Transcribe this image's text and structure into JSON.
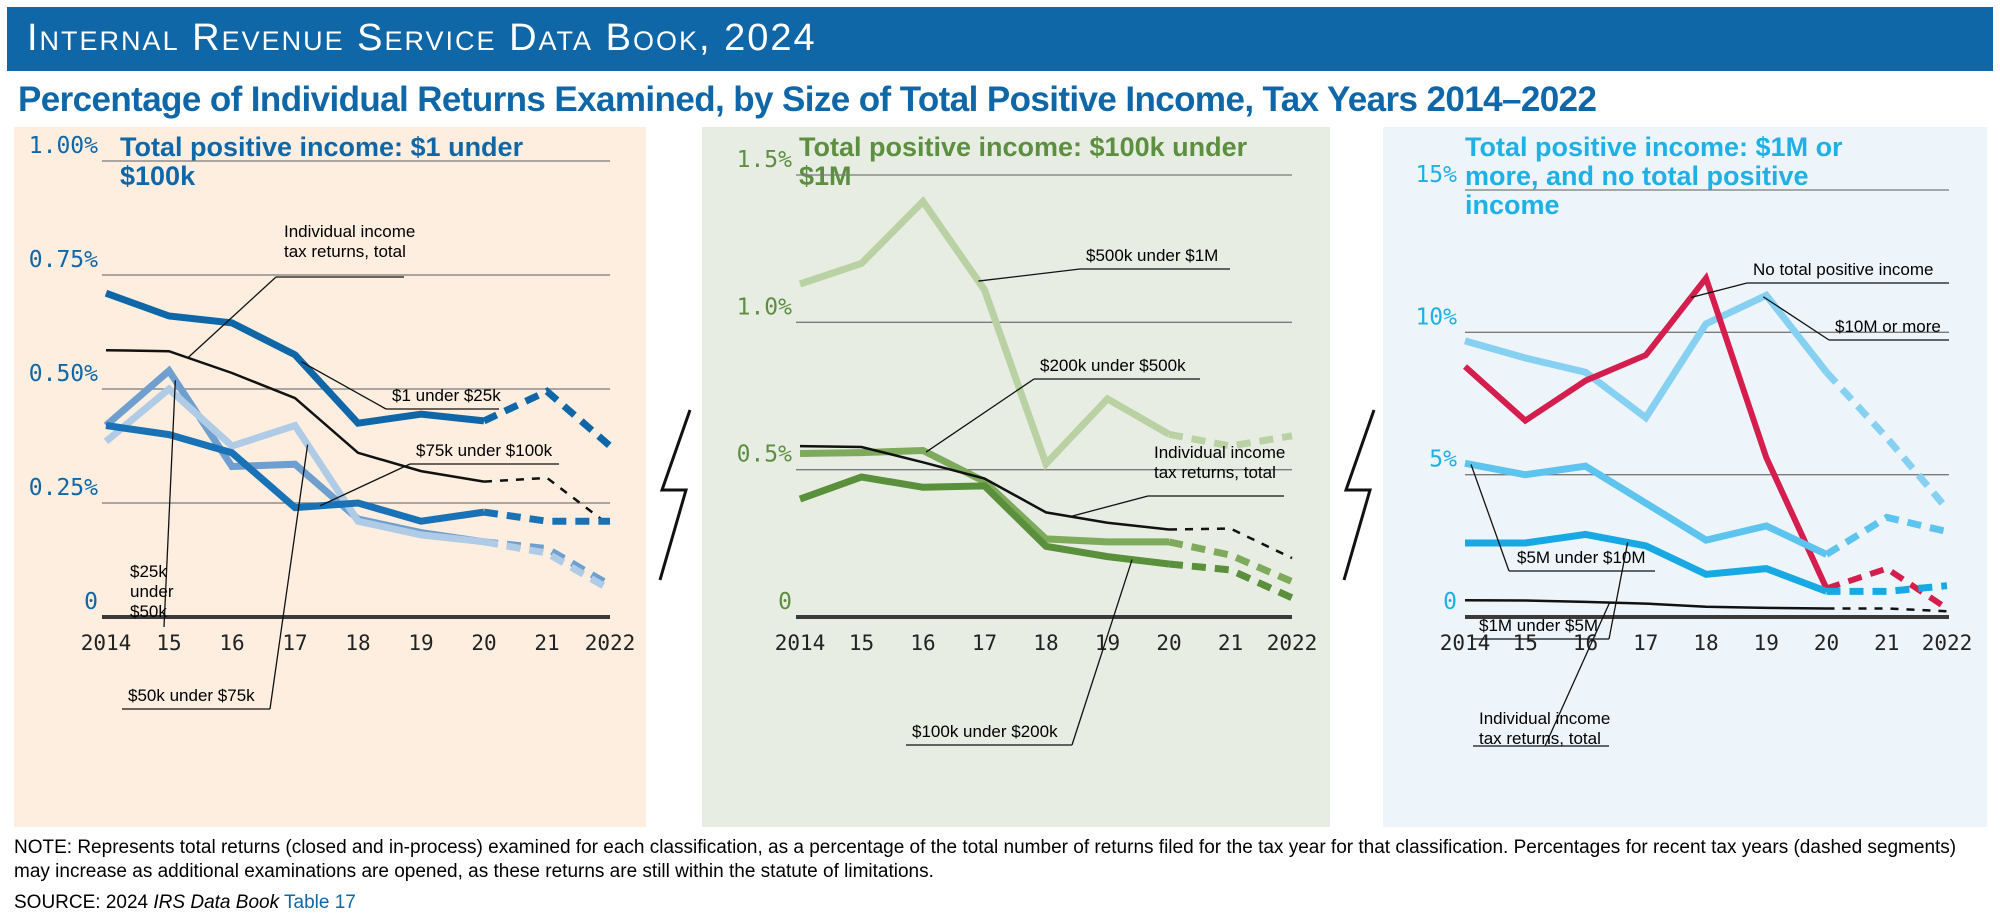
{
  "banner": {
    "title": "Internal Revenue Service Data Book, 2024"
  },
  "title": "Percentage of Individual Returns Examined, by Size of Total Positive Income, Tax Years 2014–2022",
  "note": "NOTE:  Represents total returns (closed and in-process) examined for each classification, as a percentage of the total number of returns filed for the tax year for that classification. Percentages for recent tax years (dashed segments) may increase as additional examinations are opened, as these returns are still within the statute of limitations.",
  "source": {
    "prefix": "SOURCE:  2024 ",
    "italic": "IRS Data Book",
    "link": "Table 17"
  },
  "chart_data": [
    {
      "type": "line",
      "panel_title": "Total positive income: $1 under $100k",
      "title_color": "#0f67a8",
      "x": [
        2014,
        2015,
        2016,
        2017,
        2018,
        2019,
        2020,
        2021,
        2022
      ],
      "x_tick_labels": [
        "2014",
        "15",
        "16",
        "17",
        "18",
        "19",
        "20",
        "21",
        "2022"
      ],
      "y_ticks": [
        0,
        0.25,
        0.5,
        0.75,
        1.0
      ],
      "y_tick_labels": [
        "0",
        "0.25%",
        "0.50%",
        "0.75%",
        "1.00%"
      ],
      "ylim": [
        0,
        1.0
      ],
      "dashed_from": 2020,
      "series": [
        {
          "name": "$1 under $25k",
          "color": "#0f67a8",
          "width": 7,
          "values": [
            0.71,
            0.66,
            0.645,
            0.575,
            0.425,
            0.445,
            0.43,
            0.495,
            0.375
          ]
        },
        {
          "name": "Individual income tax returns, total",
          "color": "#111111",
          "width": 2.5,
          "values": [
            0.585,
            0.583,
            0.535,
            0.48,
            0.36,
            0.32,
            0.297,
            0.305,
            0.2
          ]
        },
        {
          "name": "$25k under $50k",
          "color": "#6f9fcf",
          "width": 7,
          "values": [
            0.42,
            0.54,
            0.33,
            0.335,
            0.215,
            0.185,
            0.165,
            0.15,
            0.07
          ]
        },
        {
          "name": "$75k under $100k",
          "color": "#b0cbe6",
          "width": 7,
          "values": [
            0.385,
            0.5,
            0.375,
            0.42,
            0.21,
            0.18,
            0.165,
            0.14,
            0.06
          ]
        },
        {
          "name": "$50k under $75k",
          "color": "#1a72b6",
          "width": 7,
          "values": [
            0.42,
            0.4,
            0.36,
            0.24,
            0.25,
            0.21,
            0.23,
            0.21,
            0.21
          ]
        }
      ],
      "labels": [
        "Individual income tax returns, total",
        "$1 under $25k",
        "$75k under $100k",
        "$25k under $50k",
        "$50k under $75k"
      ]
    },
    {
      "type": "line",
      "panel_title": "Total positive income: $100k under $1M",
      "title_color": "#5c8f3f",
      "x": [
        2014,
        2015,
        2016,
        2017,
        2018,
        2019,
        2020,
        2021,
        2022
      ],
      "x_tick_labels": [
        "2014",
        "15",
        "16",
        "17",
        "18",
        "19",
        "20",
        "21",
        "2022"
      ],
      "y_ticks": [
        0,
        0.5,
        1.0,
        1.5
      ],
      "y_tick_labels": [
        "0",
        "0.5%",
        "1.0%",
        "1.5%"
      ],
      "ylim": [
        0,
        1.5
      ],
      "dashed_from": 2020,
      "series": [
        {
          "name": "$500k under $1M",
          "color": "#b9d1a3",
          "width": 7,
          "values": [
            1.13,
            1.2,
            1.41,
            1.11,
            0.52,
            0.74,
            0.62,
            0.58,
            0.615
          ]
        },
        {
          "name": "$200k under $500k",
          "color": "#7eaa5c",
          "width": 7,
          "values": [
            0.555,
            0.558,
            0.565,
            0.46,
            0.265,
            0.255,
            0.255,
            0.21,
            0.12
          ]
        },
        {
          "name": "Individual income tax returns, total",
          "color": "#111111",
          "width": 2.5,
          "values": [
            0.58,
            0.577,
            0.525,
            0.47,
            0.355,
            0.32,
            0.297,
            0.3,
            0.2
          ]
        },
        {
          "name": "$100k under $200k",
          "color": "#5a8f3c",
          "width": 7,
          "values": [
            0.4,
            0.475,
            0.44,
            0.445,
            0.24,
            0.205,
            0.18,
            0.16,
            0.065
          ]
        }
      ],
      "labels": [
        "$500k under $1M",
        "$200k under $500k",
        "Individual income tax returns, total",
        "$100k under $200k"
      ]
    },
    {
      "type": "line",
      "panel_title": "Total positive income: $1M or more, and no total positive income",
      "title_color": "#1fb0e6",
      "x": [
        2014,
        2015,
        2016,
        2017,
        2018,
        2019,
        2020,
        2021,
        2022
      ],
      "x_tick_labels": [
        "2014",
        "15",
        "16",
        "17",
        "18",
        "19",
        "20",
        "21",
        "2022"
      ],
      "y_ticks": [
        0,
        5,
        10,
        15
      ],
      "y_tick_labels": [
        "0",
        "5%",
        "10%",
        "15%"
      ],
      "ylim": [
        0,
        15
      ],
      "dashed_from": 2020,
      "series": [
        {
          "name": "$10M or more",
          "color": "#86d0f2",
          "width": 7,
          "values": [
            9.7,
            9.1,
            8.6,
            7.0,
            10.3,
            11.3,
            8.6,
            6.3,
            3.8
          ]
        },
        {
          "name": "No total positive income",
          "color": "#d41f4e",
          "width": 6,
          "values": [
            8.8,
            6.9,
            8.3,
            9.2,
            11.9,
            5.6,
            1.0,
            1.7,
            0.3
          ]
        },
        {
          "name": "$5M under $10M",
          "color": "#5cc4ef",
          "width": 7,
          "values": [
            5.4,
            5.0,
            5.3,
            4.0,
            2.7,
            3.2,
            2.2,
            3.5,
            3.0
          ]
        },
        {
          "name": "$1M under $5M",
          "color": "#18a9e4",
          "width": 7,
          "values": [
            2.6,
            2.6,
            2.9,
            2.5,
            1.5,
            1.7,
            0.9,
            0.9,
            1.1
          ]
        },
        {
          "name": "Individual income tax returns, total",
          "color": "#111111",
          "width": 2.5,
          "values": [
            0.59,
            0.58,
            0.53,
            0.47,
            0.36,
            0.32,
            0.3,
            0.3,
            0.2
          ]
        }
      ],
      "labels": [
        "No total positive income",
        "$10M or more",
        "$5M under $10M",
        "$1M under $5M",
        "Individual income tax returns, total"
      ]
    }
  ]
}
